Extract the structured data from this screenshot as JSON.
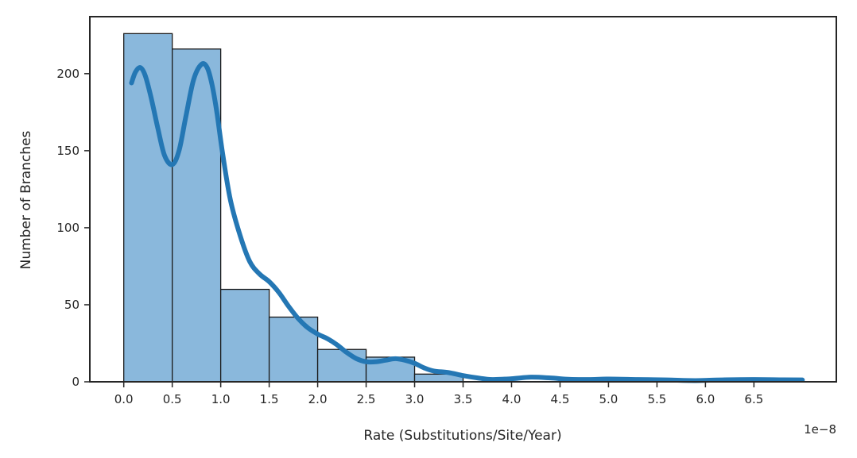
{
  "chart_data": {
    "type": "bar",
    "subtype": "histogram with kde line",
    "title": "",
    "xlabel": "Rate (Substitutions/Site/Year)",
    "ylabel": "Number of Branches",
    "x_offset_label": "1e−8",
    "bin_edges": [
      0.0,
      0.5,
      1.0,
      1.5,
      2.0,
      2.5,
      3.0,
      3.5
    ],
    "values": [
      226,
      216,
      60,
      42,
      21,
      16,
      5
    ],
    "x_ticks": [
      0.0,
      0.5,
      1.0,
      1.5,
      2.0,
      2.5,
      3.0,
      3.5,
      4.0,
      4.5,
      5.0,
      5.5,
      6.0,
      6.5
    ],
    "x_tick_labels": [
      "0.0",
      "0.5",
      "1.0",
      "1.5",
      "2.0",
      "2.5",
      "3.0",
      "3.5",
      "4.0",
      "4.5",
      "5.0",
      "5.5",
      "6.0",
      "6.5"
    ],
    "y_ticks": [
      0,
      50,
      100,
      150,
      200
    ],
    "y_tick_labels": [
      "0",
      "50",
      "100",
      "150",
      "200"
    ],
    "xlim": [
      -0.35,
      7.35
    ],
    "ylim": [
      0,
      237
    ],
    "grid": false,
    "legend": "none",
    "kde": {
      "x": [
        0.08,
        0.12,
        0.17,
        0.22,
        0.28,
        0.35,
        0.42,
        0.5,
        0.57,
        0.64,
        0.72,
        0.8,
        0.86,
        0.91,
        0.96,
        1.02,
        1.1,
        1.2,
        1.3,
        1.4,
        1.5,
        1.6,
        1.7,
        1.8,
        1.9,
        2.0,
        2.1,
        2.2,
        2.3,
        2.4,
        2.5,
        2.6,
        2.7,
        2.8,
        2.9,
        3.0,
        3.1,
        3.2,
        3.35,
        3.5,
        3.65,
        3.8,
        4.0,
        4.2,
        4.4,
        4.6,
        4.8,
        5.0,
        5.3,
        5.6,
        5.9,
        6.2,
        6.5,
        6.8,
        7.0
      ],
      "y": [
        194,
        201,
        204,
        199,
        185,
        165,
        147,
        141,
        150,
        172,
        196,
        206,
        204,
        193,
        175,
        148,
        118,
        95,
        78,
        70,
        65,
        58,
        49,
        41,
        35,
        31,
        28,
        24,
        19,
        15,
        13,
        13,
        14,
        15,
        14,
        12,
        9,
        7,
        6,
        4,
        2.5,
        1.5,
        2,
        3,
        2.5,
        1.6,
        1.5,
        1.8,
        1.5,
        1.2,
        0.8,
        1.3,
        1.5,
        1.3,
        1.2
      ]
    },
    "colors": {
      "bar_fill": "#8ab8dc",
      "bar_edge": "#1a1a1a",
      "kde_line": "#2477b4",
      "axes": "#262626"
    }
  }
}
